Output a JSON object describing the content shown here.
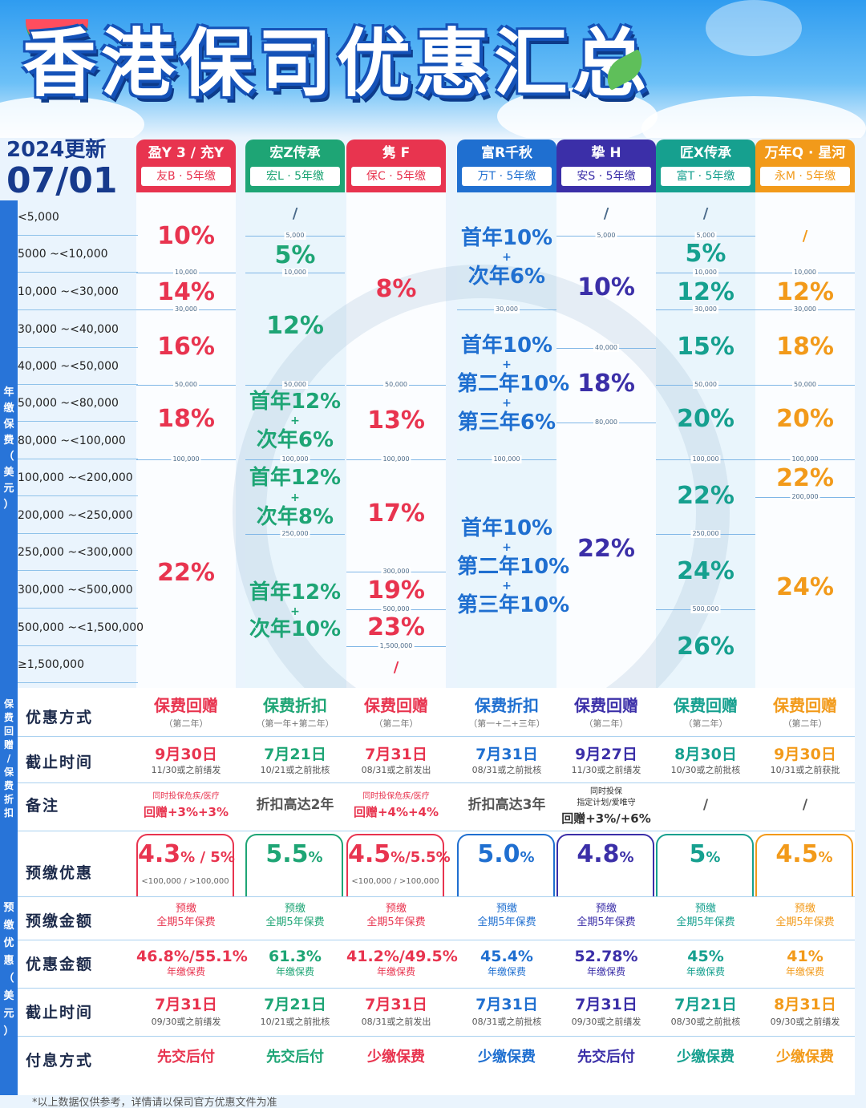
{
  "header": {
    "title": "香港保司优惠汇总",
    "update_year": "2024更新",
    "update_date": "07/01"
  },
  "colors": {
    "red": "#e8344f",
    "green": "#1ea575",
    "blue": "#1f6fd0",
    "purple": "#3b2fa8",
    "teal": "#16a08f",
    "orange": "#f29a1a"
  },
  "columns": [
    {
      "name": "盈Y 3 / 充Y",
      "sub": "友B · 5年缴",
      "color": "#e8344f"
    },
    {
      "name": "宏Z传承",
      "sub": "宏L · 5年缴",
      "color": "#1ea575"
    },
    {
      "name": "隽 F",
      "sub": "保C · 5年缴",
      "color": "#e8344f"
    },
    {
      "name": "富R千秋",
      "sub": "万T · 5年缴",
      "color": "#1f6fd0"
    },
    {
      "name": "挚 H",
      "sub": "安S · 5年缴",
      "color": "#3b2fa8"
    },
    {
      "name": "匠X传承",
      "sub": "富T · 5年缴",
      "color": "#16a08f"
    },
    {
      "name": "万年Q · 星河",
      "sub": "永M · 5年缴",
      "color": "#f29a1a"
    }
  ],
  "side_labels": {
    "annual": "年缴保费（美元）",
    "rebate": "保费回赠/保费折扣",
    "prepay": "预缴优惠（美元）"
  },
  "tiers": [
    "<5,000",
    "5000 ~<10,000",
    "10,000 ~<30,000",
    "30,000 ~<40,000",
    "40,000 ~<50,000",
    "50,000 ~<80,000",
    "80,000 ~<100,000",
    "100,000 ~<200,000",
    "200,000 ~<250,000",
    "250,000 ~<300,000",
    "300,000 ~<500,000",
    "500,000 ~<1,500,000",
    "≥1,500,000"
  ],
  "breaks": {
    "b5k": "5,000",
    "b10k": "10,000",
    "b30k": "30,000",
    "b40k": "40,000",
    "b50k": "50,000",
    "b80k": "80,000",
    "b100k": "100,000",
    "b200k": "200,000",
    "b250k": "250,000",
    "b300k": "300,000",
    "b500k": "500,000",
    "b1500k": "1,500,000"
  },
  "rates": {
    "c1": [
      "10%",
      "14%",
      "16%",
      "18%",
      "22%"
    ],
    "c2": [
      "/",
      "5%",
      "12%",
      "首年12%",
      "+",
      "次年6%",
      "首年12%",
      "+",
      "次年8%",
      "首年12%",
      "+",
      "次年10%"
    ],
    "c3": [
      "8%",
      "13%",
      "17%",
      "19%",
      "23%",
      "/"
    ],
    "c4": [
      "首年10%",
      "+",
      "次年6%",
      "首年10%",
      "+",
      "第二年10%",
      "+",
      "第三年6%",
      "首年10%",
      "+",
      "第二年10%",
      "+",
      "第三年10%"
    ],
    "c5": [
      "/",
      "10%",
      "18%",
      "22%"
    ],
    "c6": [
      "/",
      "5%",
      "12%",
      "15%",
      "20%",
      "22%",
      "24%",
      "26%"
    ],
    "c7": [
      "/",
      "12%",
      "18%",
      "20%",
      "22%",
      "24%"
    ]
  },
  "rows": {
    "method_label": "优惠方式",
    "deadline_label": "截止时间",
    "note_label": "备注",
    "prepay_label": "预缴优惠",
    "prepay_amount_label": "预缴金额",
    "benefit_label": "优惠金额",
    "deadline2_label": "截止时间",
    "payment_label": "付息方式"
  },
  "method": [
    {
      "t": "保费回赠",
      "s": "（第二年）"
    },
    {
      "t": "保费折扣",
      "s": "（第一年+第二年）"
    },
    {
      "t": "保费回赠",
      "s": "（第二年）"
    },
    {
      "t": "保费折扣",
      "s": "（第一+二+三年）"
    },
    {
      "t": "保费回赠",
      "s": "（第二年）"
    },
    {
      "t": "保费回赠",
      "s": "（第二年）"
    },
    {
      "t": "保费回赠",
      "s": "（第二年）"
    }
  ],
  "deadline": [
    {
      "t": "9月30日",
      "s": "11/30或之前缮发"
    },
    {
      "t": "7月21日",
      "s": "10/21或之前批核"
    },
    {
      "t": "7月31日",
      "s": "08/31或之前发出"
    },
    {
      "t": "7月31日",
      "s": "08/31或之前批核"
    },
    {
      "t": "9月27日",
      "s": "11/30或之前缮发"
    },
    {
      "t": "8月30日",
      "s": "10/30或之前批核"
    },
    {
      "t": "9月30日",
      "s": "10/31或之前获批"
    }
  ],
  "notes": [
    {
      "a": "同时投保危疾/医疗",
      "b": "回赠+3%+3%"
    },
    {
      "a": "",
      "b": "折扣高达2年"
    },
    {
      "a": "同时投保危疾/医疗",
      "b": "回赠+4%+4%"
    },
    {
      "a": "",
      "b": "折扣高达3年"
    },
    {
      "a": "同时投保",
      "a2": "指定计划/爱唯守",
      "b": "回赠+3%/+6%"
    },
    {
      "a": "",
      "b": "/"
    },
    {
      "a": "",
      "b": "/"
    }
  ],
  "prepay": [
    {
      "m": "4.3",
      "m2": "% / 5",
      "m3": "%",
      "u": "<100,000  /  >100,000"
    },
    {
      "m": "5.5",
      "m2": "%",
      "m3": "",
      "u": ""
    },
    {
      "m": "4.5",
      "m2": "%/5.5",
      "m3": "%",
      "u": "<100,000  /  >100,000"
    },
    {
      "m": "5.0",
      "m2": "%",
      "m3": "",
      "u": ""
    },
    {
      "m": "4.8",
      "m2": "%",
      "m3": "",
      "u": ""
    },
    {
      "m": "5",
      "m2": "%",
      "m3": "",
      "u": ""
    },
    {
      "m": "4.5",
      "m2": "%",
      "m3": "",
      "u": ""
    }
  ],
  "prepay_amount": {
    "a": "预缴",
    "b": "全期5年保费"
  },
  "benefit": [
    {
      "t": "46.8%/55.1%",
      "s": "年缴保费"
    },
    {
      "t": "61.3%",
      "s": "年缴保费"
    },
    {
      "t": "41.2%/49.5%",
      "s": "年缴保费"
    },
    {
      "t": "45.4%",
      "s": "年缴保费"
    },
    {
      "t": "52.78%",
      "s": "年缴保费"
    },
    {
      "t": "45%",
      "s": "年缴保费"
    },
    {
      "t": "41%",
      "s": "年缴保费"
    }
  ],
  "deadline2": [
    {
      "t": "7月31日",
      "s": "09/30或之前缮发"
    },
    {
      "t": "7月21日",
      "s": "10/21或之前批核"
    },
    {
      "t": "7月31日",
      "s": "08/31或之前发出"
    },
    {
      "t": "7月31日",
      "s": "08/31或之前批核"
    },
    {
      "t": "7月31日",
      "s": "09/30或之前缮发"
    },
    {
      "t": "7月21日",
      "s": "08/30或之前批核"
    },
    {
      "t": "8月31日",
      "s": "09/30或之前缮发"
    }
  ],
  "payment": [
    "先交后付",
    "先交后付",
    "少缴保费",
    "少缴保费",
    "先交后付",
    "少缴保费",
    "少缴保费"
  ],
  "footer": "*以上数据仅供参考，详情请以保司官方优惠文件为准"
}
